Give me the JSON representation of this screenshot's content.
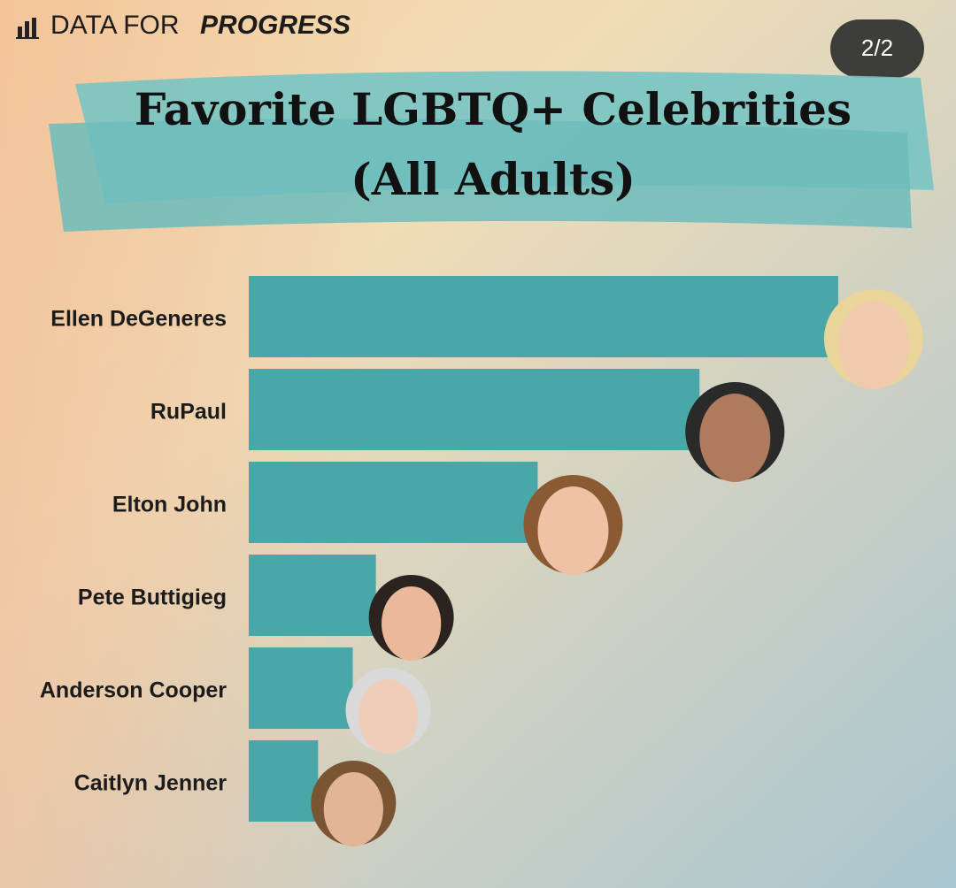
{
  "brand": {
    "name": "DATA FOR",
    "emphasis": "PROGRESS"
  },
  "page_indicator": "2/2",
  "chart_data": {
    "type": "hbar",
    "title": "Favorite LGBTQ+ Celebrities",
    "subtitle": "(All Adults)",
    "categories": [
      "Ellen DeGeneres",
      "RuPaul",
      "Elton John",
      "Pete Buttigieg",
      "Anderson Cooper",
      "Caitlyn Jenner"
    ],
    "values": [
      25.5,
      19.5,
      12.5,
      5.5,
      4.5,
      3
    ],
    "color": "#4aa7a7",
    "xlim": [
      0,
      26
    ]
  }
}
